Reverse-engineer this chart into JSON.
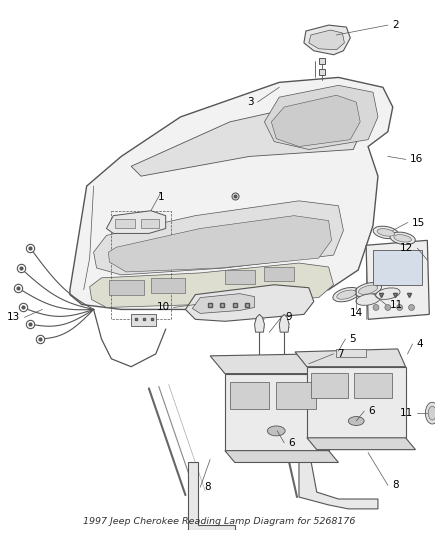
{
  "title": "1997 Jeep Cherokee Reading Lamp Diagram for 5268176",
  "bg_color": "#ffffff",
  "line_color": "#555555",
  "label_color": "#000000",
  "font_size": 7.5,
  "title_font_size": 6.8,
  "fig_w": 4.38,
  "fig_h": 5.33,
  "dpi": 100
}
